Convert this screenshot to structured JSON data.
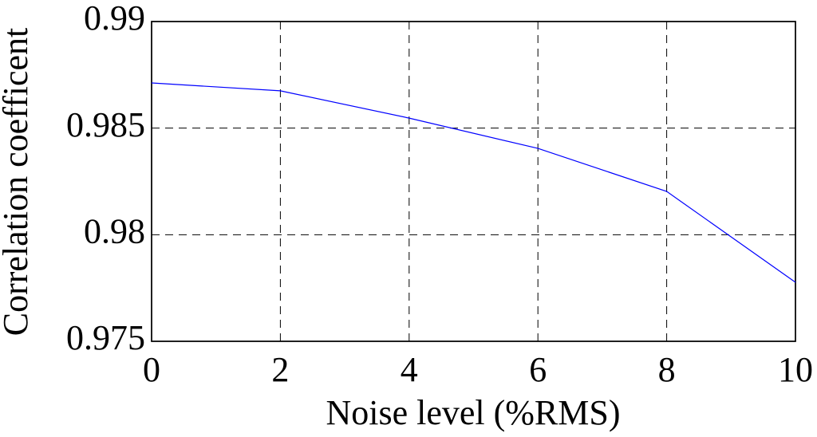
{
  "chart_data": {
    "type": "line",
    "x_label": "Noise level (%RMS)",
    "y_label": "Correlation coefficent",
    "x": [
      0,
      2,
      4,
      6,
      8,
      10
    ],
    "values": [
      0.98712,
      0.98675,
      0.98547,
      0.98405,
      0.98203,
      0.97777
    ],
    "color": "#0000ff",
    "xlim": [
      0,
      10
    ],
    "xticks": [
      0,
      2,
      4,
      6,
      8,
      10
    ],
    "ylim": [
      0.975,
      0.99
    ],
    "yticks": [
      0.975,
      0.98,
      0.985,
      0.99
    ],
    "grid": true
  }
}
